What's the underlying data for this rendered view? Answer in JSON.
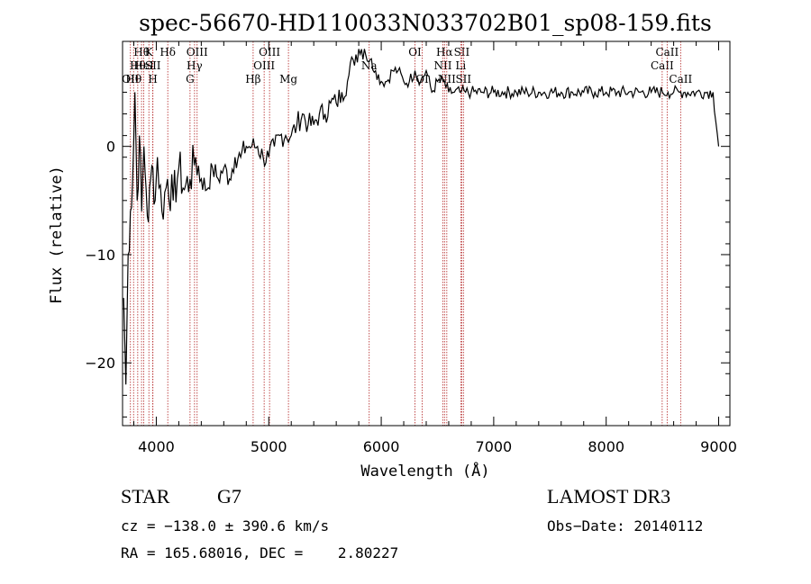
{
  "chart_data": {
    "type": "line",
    "title": "spec-56670-HD110033N033702B01_sp08-159.fits",
    "xlabel": "Wavelength (Å)",
    "ylabel": "Flux (relative)",
    "xlim": [
      3700,
      9100
    ],
    "ylim": [
      -25.8,
      9.7
    ],
    "xticks": [
      4000,
      5000,
      6000,
      7000,
      8000,
      9000
    ],
    "yticks": [
      0,
      -10,
      -20
    ],
    "grid": false,
    "legend": "none",
    "series": [
      {
        "name": "flux",
        "x": [
          3710,
          3730,
          3750,
          3770,
          3790,
          3810,
          3830,
          3850,
          3870,
          3890,
          3910,
          3930,
          3950,
          3970,
          3990,
          4010,
          4050,
          4100,
          4150,
          4200,
          4250,
          4300,
          4350,
          4400,
          4450,
          4500,
          4550,
          4600,
          4650,
          4700,
          4750,
          4800,
          4850,
          4900,
          4950,
          5000,
          5050,
          5100,
          5150,
          5200,
          5250,
          5300,
          5350,
          5400,
          5450,
          5500,
          5550,
          5600,
          5650,
          5700,
          5750,
          5800,
          5850,
          5900,
          5950,
          6000,
          6050,
          6100,
          6150,
          6200,
          6250,
          6300,
          6350,
          6400,
          6450,
          6500,
          6550,
          6600,
          6650,
          6700,
          6750,
          6800,
          6900,
          7000,
          7100,
          7200,
          7300,
          7400,
          7500,
          7600,
          7700,
          7800,
          7900,
          8000,
          8100,
          8200,
          8300,
          8400,
          8500,
          8550,
          8600,
          8650,
          8700,
          8800,
          8900,
          8950,
          9000
        ],
        "y": [
          -14,
          -22,
          -10,
          -6,
          -3,
          5,
          -5,
          1,
          -6,
          0,
          -4,
          -7,
          -3,
          -2,
          -5,
          -1,
          -6,
          -3,
          -5,
          -2,
          -4,
          -3,
          -1,
          -3,
          -4,
          -2,
          -3,
          -2,
          -3,
          -1,
          -1,
          0,
          0,
          0,
          -1,
          -1,
          0,
          1,
          1,
          1,
          2,
          3,
          2,
          2,
          3,
          3,
          4,
          4,
          5,
          6,
          8,
          9,
          9,
          8,
          7,
          6,
          6,
          7,
          7,
          6,
          6,
          7,
          6,
          7,
          5,
          6,
          6,
          5,
          5,
          5,
          5,
          5,
          5,
          5,
          5,
          5,
          5,
          5,
          5,
          5,
          5,
          5,
          5,
          5,
          5,
          5,
          5,
          5,
          5,
          5,
          5,
          5,
          5,
          5,
          5,
          5,
          0
        ]
      }
    ],
    "line_markers": [
      {
        "x": 3770,
        "row": 2,
        "label": "OII"
      },
      {
        "x": 3798,
        "row": 2,
        "label": "Hθ"
      },
      {
        "x": 3835,
        "row": 1,
        "label": "Hθ"
      },
      {
        "x": 3869,
        "row": 0,
        "label": "Hθ"
      },
      {
        "x": 3889,
        "row": 1,
        "label": "HeI"
      },
      {
        "x": 3934,
        "row": 0,
        "label": "K"
      },
      {
        "x": 3969,
        "row": 2,
        "label": "H"
      },
      {
        "x": 3970,
        "row": 1,
        "label": "SII"
      },
      {
        "x": 4102,
        "row": 0,
        "label": "Hδ"
      },
      {
        "x": 4300,
        "row": 2,
        "label": "G"
      },
      {
        "x": 4340,
        "row": 1,
        "label": "Hγ"
      },
      {
        "x": 4363,
        "row": 0,
        "label": "OIII"
      },
      {
        "x": 4861,
        "row": 2,
        "label": "Hβ"
      },
      {
        "x": 4959,
        "row": 1,
        "label": "OIII"
      },
      {
        "x": 5007,
        "row": 0,
        "label": "OIII"
      },
      {
        "x": 5175,
        "row": 2,
        "label": "Mg"
      },
      {
        "x": 5893,
        "row": 1,
        "label": "Na"
      },
      {
        "x": 6300,
        "row": 0,
        "label": "OI"
      },
      {
        "x": 6364,
        "row": 2,
        "label": "OI"
      },
      {
        "x": 6548,
        "row": 1,
        "label": "NII"
      },
      {
        "x": 6563,
        "row": 0,
        "label": "Hα"
      },
      {
        "x": 6583,
        "row": 2,
        "label": "NII"
      },
      {
        "x": 6716,
        "row": 0,
        "label": "SII"
      },
      {
        "x": 6707,
        "row": 1,
        "label": "Li"
      },
      {
        "x": 6731,
        "row": 2,
        "label": "SII"
      },
      {
        "x": 8498,
        "row": 1,
        "label": "CaII"
      },
      {
        "x": 8542,
        "row": 0,
        "label": "CaII"
      },
      {
        "x": 8662,
        "row": 2,
        "label": "CaII"
      }
    ]
  },
  "info": {
    "object_type": "STAR",
    "subclass": "G7",
    "survey": "LAMOST DR3",
    "cz": "cz = −138.0 ± 390.6 km/s",
    "obs_date": "Obs−Date: 20140112",
    "coords": "RA = 165.68016, DEC =    2.80227"
  }
}
